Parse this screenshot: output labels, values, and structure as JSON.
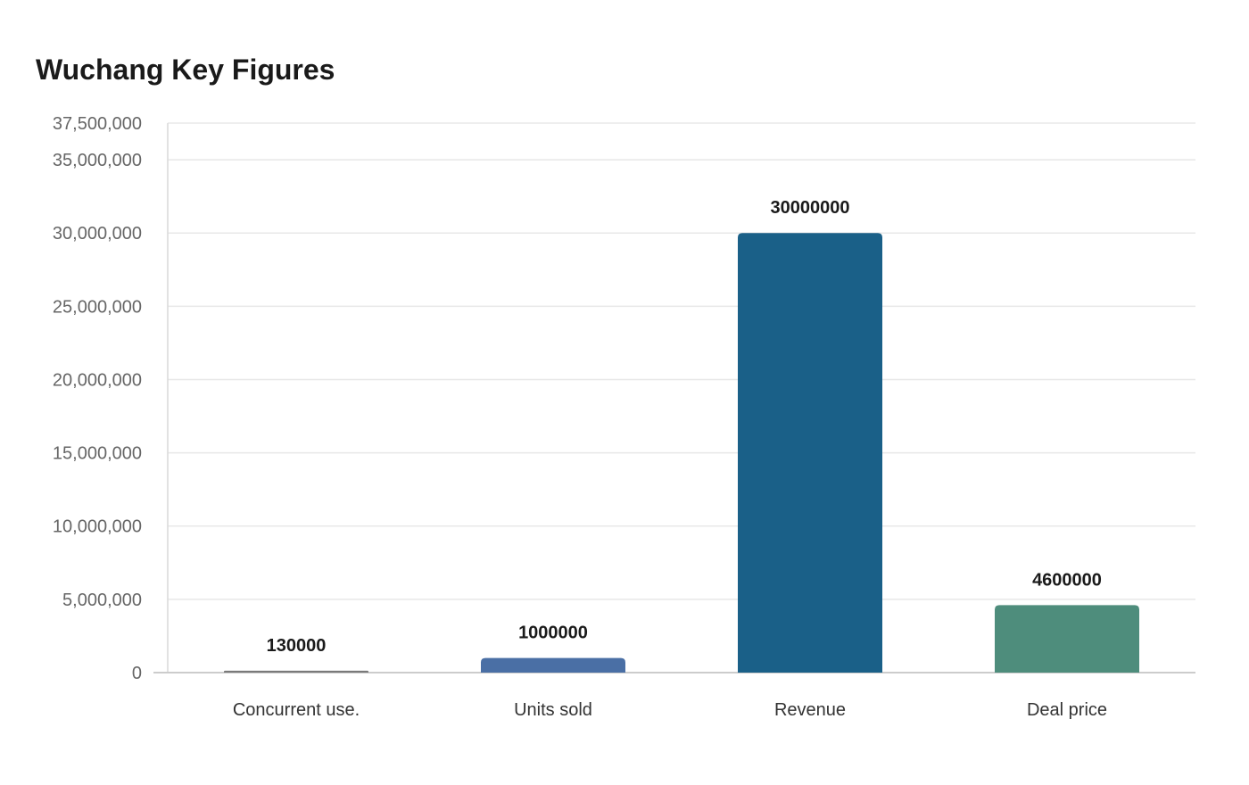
{
  "chart_data": {
    "type": "bar",
    "title": "Wuchang Key Figures",
    "categories": [
      "Concurrent use.",
      "Units sold",
      "Revenue",
      "Deal price"
    ],
    "values": [
      130000,
      1000000,
      30000000,
      4600000
    ],
    "data_labels": [
      "130000",
      "1000000",
      "30000000",
      "4600000"
    ],
    "colors": [
      "#7a7a7a",
      "#4a6fa5",
      "#1a6088",
      "#4e8d7c"
    ],
    "ylim": [
      0,
      37500000
    ],
    "yticks": [
      0,
      5000000,
      10000000,
      15000000,
      20000000,
      25000000,
      30000000,
      35000000,
      37500000
    ],
    "ytick_labels": [
      "0",
      "5,000,000",
      "10,000,000",
      "15,000,000",
      "20,000,000",
      "25,000,000",
      "30,000,000",
      "35,000,000",
      "37,500,000"
    ],
    "xlabel": "",
    "ylabel": "",
    "grid": true,
    "legend": "none"
  }
}
